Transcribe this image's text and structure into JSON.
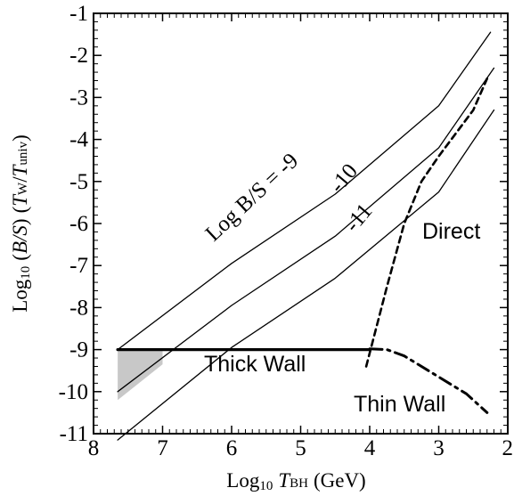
{
  "chart_data": {
    "type": "line",
    "xlabel": {
      "prefix": "Log",
      "sub": "10",
      "italic": "T",
      "italic_sub": "BH",
      "unit": "(GeV)"
    },
    "ylabel": {
      "prefix": "Log",
      "sub": "10",
      "ratio": "B/S",
      "italic1": "T",
      "sub1": "W",
      "italic2": "T",
      "sub2": "univ"
    },
    "xlim": [
      8,
      2
    ],
    "ylim": [
      -11,
      -1
    ],
    "x_ticks": [
      8,
      7,
      6,
      5,
      4,
      3,
      2
    ],
    "y_ticks": [
      -1,
      -2,
      -3,
      -4,
      -5,
      -6,
      -7,
      -8,
      -9,
      -10,
      -11
    ],
    "x_tick_labels": [
      "8",
      "7",
      "6",
      "5",
      "4",
      "3",
      "2"
    ],
    "y_tick_labels": [
      "-1",
      "-2",
      "-3",
      "-4",
      "-5",
      "-6",
      "-7",
      "-8",
      "-9",
      "-10",
      "-11"
    ],
    "series": [
      {
        "style": "thin",
        "points": [
          [
            7.65,
            -9.0
          ],
          [
            6.0,
            -6.95
          ],
          [
            4.5,
            -5.3
          ],
          [
            3.0,
            -3.2
          ],
          [
            2.25,
            -1.45
          ]
        ]
      },
      {
        "style": "thin",
        "points": [
          [
            7.65,
            -10.0
          ],
          [
            6.0,
            -7.95
          ],
          [
            4.5,
            -6.3
          ],
          [
            3.0,
            -4.2
          ],
          [
            2.2,
            -2.3
          ]
        ]
      },
      {
        "style": "thin",
        "points": [
          [
            7.65,
            -11.15
          ],
          [
            6.0,
            -8.95
          ],
          [
            4.5,
            -7.3
          ],
          [
            3.0,
            -5.25
          ],
          [
            2.2,
            -3.3
          ]
        ]
      },
      {
        "style": "thick",
        "points": [
          [
            7.65,
            -9.0
          ],
          [
            4.0,
            -9.0
          ]
        ]
      },
      {
        "style": "dashed",
        "points": [
          [
            4.05,
            -9.4
          ],
          [
            3.75,
            -7.5
          ],
          [
            3.5,
            -6.0
          ],
          [
            3.25,
            -5.0
          ],
          [
            3.0,
            -4.4
          ],
          [
            2.5,
            -3.3
          ],
          [
            2.3,
            -2.55
          ]
        ]
      },
      {
        "style": "dash-dot",
        "points": [
          [
            4.0,
            -8.98
          ],
          [
            3.75,
            -9.0
          ],
          [
            3.5,
            -9.15
          ],
          [
            3.0,
            -9.65
          ],
          [
            2.6,
            -10.05
          ],
          [
            2.3,
            -10.5
          ]
        ]
      }
    ],
    "shaded_region": [
      [
        7.65,
        -9.0
      ],
      [
        7.65,
        -10.2
      ],
      [
        7.0,
        -9.35
      ],
      [
        7.0,
        -9.0
      ]
    ],
    "annotations": [
      {
        "id": "logbs",
        "text": "Log B/S =  -9",
        "font": "serif"
      },
      {
        "id": "m10",
        "text": "-10",
        "font": "serif"
      },
      {
        "id": "m11",
        "text": "-11",
        "font": "serif"
      },
      {
        "id": "direct",
        "text": "Direct",
        "font": "sans"
      },
      {
        "id": "thick",
        "text": "Thick Wall",
        "font": "sans"
      },
      {
        "id": "thin",
        "text": "Thin Wall",
        "font": "sans"
      }
    ],
    "grid": false,
    "legend": "none"
  }
}
